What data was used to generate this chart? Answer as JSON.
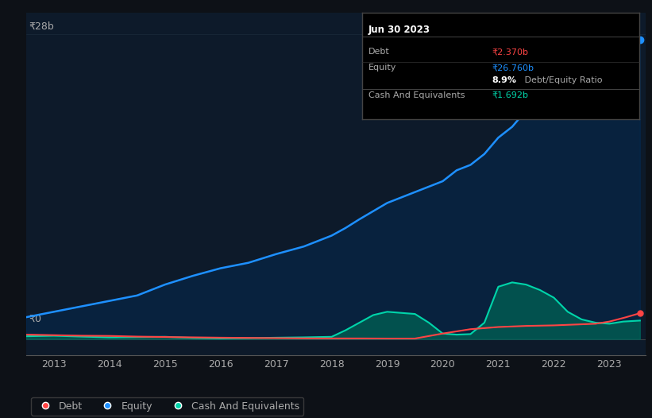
{
  "bg_color": "#0d1117",
  "plot_bg_color": "#0d1a2a",
  "ylabel_text": "₹28b",
  "y0_text": "₹0",
  "equity_color": "#1e90ff",
  "debt_color": "#ff4444",
  "cash_color": "#00d4aa",
  "cash_fill_color": "#006655",
  "equity_fill_color": "#003366",
  "tooltip_date": "Jun 30 2023",
  "tooltip_debt_label": "Debt",
  "tooltip_debt_value": "₹2.370b",
  "tooltip_debt_color": "#ff4444",
  "tooltip_equity_label": "Equity",
  "tooltip_equity_value": "₹26.760b",
  "tooltip_equity_color": "#1e90ff",
  "tooltip_ratio_bold": "8.9%",
  "tooltip_ratio_rest": " Debt/Equity Ratio",
  "tooltip_cash_label": "Cash And Equivalents",
  "tooltip_cash_value": "₹1.692b",
  "tooltip_cash_color": "#00d4aa",
  "legend_debt": "Debt",
  "legend_equity": "Equity",
  "legend_cash": "Cash And Equivalents",
  "xlim": [
    2012.5,
    2023.65
  ],
  "ylim": [
    -1.5,
    30
  ],
  "grid_color": "#1a2a3a",
  "tick_color": "#aaaaaa",
  "axis_color": "#555555"
}
